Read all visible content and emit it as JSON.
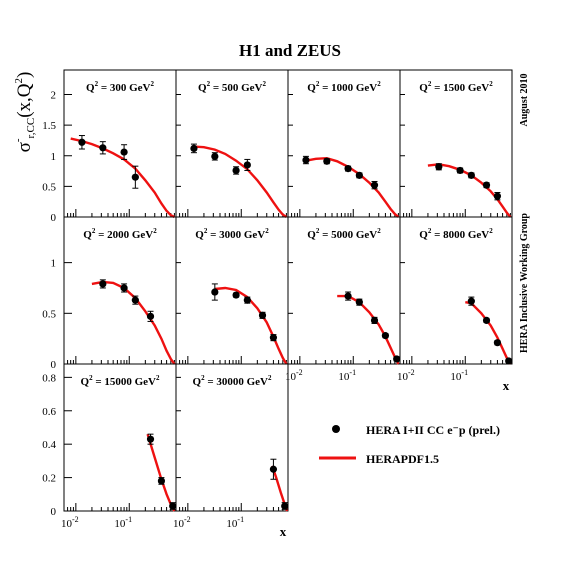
{
  "title": "H1 and ZEUS",
  "side_note_top": "August 2010",
  "side_note_bottom": "HERA Inclusive Working Group",
  "y_axis_label": "σ",
  "y_axis_label_sup": "-",
  "y_axis_label_sub": "r,CC",
  "y_axis_label_args": "(x,Q",
  "y_axis_label_args_sup": "2",
  "y_axis_label_close": ")",
  "x_axis_label": "x",
  "legend": {
    "data_label": "HERA I+II CC e⁻p (prel.)",
    "fit_label": "HERAPDF1.5"
  },
  "colors": {
    "data": "#000000",
    "fit": "#ee1111",
    "frame": "#000000"
  },
  "chart_data": {
    "type": "scatter",
    "x_scale": "log",
    "xlim": [
      0.006,
      0.75
    ],
    "x_ticks": [
      {
        "value": 0.01,
        "base": "10",
        "exp": "-2"
      },
      {
        "value": 0.1,
        "base": "10",
        "exp": "-1"
      }
    ],
    "row_ylims": [
      [
        0,
        2.4
      ],
      [
        0,
        1.45
      ],
      [
        0,
        0.88
      ]
    ],
    "row_yticks": [
      [
        {
          "value": 0,
          "label": "0"
        },
        {
          "value": 0.5,
          "label": "0.5"
        },
        {
          "value": 1,
          "label": "1"
        },
        {
          "value": 1.5,
          "label": "1.5"
        },
        {
          "value": 2,
          "label": "2"
        }
      ],
      [
        {
          "value": 0,
          "label": "0"
        },
        {
          "value": 0.5,
          "label": "0.5"
        },
        {
          "value": 1,
          "label": "1"
        }
      ],
      [
        {
          "value": 0,
          "label": "0"
        },
        {
          "value": 0.2,
          "label": "0.2"
        },
        {
          "value": 0.4,
          "label": "0.4"
        },
        {
          "value": 0.6,
          "label": "0.6"
        },
        {
          "value": 0.8,
          "label": "0.8"
        }
      ]
    ],
    "series": [
      {
        "name": "HERA I+II CC e⁻p (prel.)",
        "kind": "points"
      },
      {
        "name": "HERAPDF1.5",
        "kind": "curve"
      }
    ],
    "panels": [
      {
        "label": "Q",
        "label_sup": "2",
        "label_value": " = 300 GeV",
        "label_value_sup": "2",
        "points": [
          {
            "x": 0.013,
            "y": 1.22,
            "err": 0.11
          },
          {
            "x": 0.032,
            "y": 1.13,
            "err": 0.1
          },
          {
            "x": 0.08,
            "y": 1.06,
            "err": 0.12
          },
          {
            "x": 0.13,
            "y": 0.65,
            "err": 0.18
          }
        ],
        "curve": [
          [
            0.008,
            1.28
          ],
          [
            0.013,
            1.24
          ],
          [
            0.02,
            1.19
          ],
          [
            0.032,
            1.12
          ],
          [
            0.05,
            1.04
          ],
          [
            0.08,
            0.94
          ],
          [
            0.13,
            0.79
          ],
          [
            0.2,
            0.6
          ],
          [
            0.3,
            0.4
          ],
          [
            0.4,
            0.22
          ],
          [
            0.5,
            0.1
          ],
          [
            0.6,
            0.03
          ],
          [
            0.7,
            0.0
          ]
        ]
      },
      {
        "label": "Q",
        "label_sup": "2",
        "label_value": " = 500 GeV",
        "label_value_sup": "2",
        "points": [
          {
            "x": 0.013,
            "y": 1.12,
            "err": 0.07
          },
          {
            "x": 0.032,
            "y": 0.99,
            "err": 0.06
          },
          {
            "x": 0.08,
            "y": 0.76,
            "err": 0.06
          },
          {
            "x": 0.13,
            "y": 0.85,
            "err": 0.09
          }
        ],
        "curve": [
          [
            0.013,
            1.15
          ],
          [
            0.02,
            1.14
          ],
          [
            0.032,
            1.1
          ],
          [
            0.05,
            1.03
          ],
          [
            0.08,
            0.92
          ],
          [
            0.13,
            0.78
          ],
          [
            0.2,
            0.6
          ],
          [
            0.3,
            0.4
          ],
          [
            0.4,
            0.24
          ],
          [
            0.5,
            0.12
          ],
          [
            0.6,
            0.04
          ],
          [
            0.7,
            0.0
          ]
        ]
      },
      {
        "label": "Q",
        "label_sup": "2",
        "label_value": " = 1000 GeV",
        "label_value_sup": "2",
        "points": [
          {
            "x": 0.013,
            "y": 0.93,
            "err": 0.06
          },
          {
            "x": 0.032,
            "y": 0.91,
            "err": 0.04
          },
          {
            "x": 0.08,
            "y": 0.79,
            "err": 0.04
          },
          {
            "x": 0.13,
            "y": 0.68,
            "err": 0.04
          },
          {
            "x": 0.25,
            "y": 0.52,
            "err": 0.06
          }
        ],
        "curve": [
          [
            0.013,
            0.92
          ],
          [
            0.02,
            0.95
          ],
          [
            0.032,
            0.96
          ],
          [
            0.05,
            0.91
          ],
          [
            0.08,
            0.82
          ],
          [
            0.13,
            0.7
          ],
          [
            0.2,
            0.56
          ],
          [
            0.3,
            0.4
          ],
          [
            0.4,
            0.25
          ],
          [
            0.5,
            0.13
          ],
          [
            0.6,
            0.05
          ],
          [
            0.7,
            0.0
          ]
        ]
      },
      {
        "label": "Q",
        "label_sup": "2",
        "label_value": " = 1500 GeV",
        "label_value_sup": "2",
        "points": [
          {
            "x": 0.032,
            "y": 0.82,
            "err": 0.05
          },
          {
            "x": 0.08,
            "y": 0.76,
            "err": 0.04
          },
          {
            "x": 0.13,
            "y": 0.68,
            "err": 0.04
          },
          {
            "x": 0.25,
            "y": 0.52,
            "err": 0.04
          },
          {
            "x": 0.4,
            "y": 0.34,
            "err": 0.06
          }
        ],
        "curve": [
          [
            0.02,
            0.84
          ],
          [
            0.032,
            0.86
          ],
          [
            0.05,
            0.83
          ],
          [
            0.08,
            0.77
          ],
          [
            0.13,
            0.68
          ],
          [
            0.2,
            0.56
          ],
          [
            0.3,
            0.42
          ],
          [
            0.4,
            0.29
          ],
          [
            0.5,
            0.17
          ],
          [
            0.6,
            0.07
          ],
          [
            0.7,
            0.0
          ]
        ]
      },
      {
        "label": "Q",
        "label_sup": "2",
        "label_value": " = 2000 GeV",
        "label_value_sup": "2",
        "points": [
          {
            "x": 0.032,
            "y": 0.79,
            "err": 0.04
          },
          {
            "x": 0.08,
            "y": 0.75,
            "err": 0.04
          },
          {
            "x": 0.13,
            "y": 0.63,
            "err": 0.04
          },
          {
            "x": 0.25,
            "y": 0.47,
            "err": 0.05
          }
        ],
        "curve": [
          [
            0.02,
            0.79
          ],
          [
            0.032,
            0.81
          ],
          [
            0.05,
            0.8
          ],
          [
            0.08,
            0.75
          ],
          [
            0.13,
            0.65
          ],
          [
            0.2,
            0.52
          ],
          [
            0.3,
            0.38
          ],
          [
            0.4,
            0.25
          ],
          [
            0.5,
            0.13
          ],
          [
            0.6,
            0.05
          ],
          [
            0.7,
            0.0
          ]
        ]
      },
      {
        "label": "Q",
        "label_sup": "2",
        "label_value": " = 3000 GeV",
        "label_value_sup": "2",
        "points": [
          {
            "x": 0.032,
            "y": 0.71,
            "err": 0.08
          },
          {
            "x": 0.08,
            "y": 0.68,
            "err": 0.02
          },
          {
            "x": 0.13,
            "y": 0.63,
            "err": 0.03
          },
          {
            "x": 0.25,
            "y": 0.48,
            "err": 0.03
          },
          {
            "x": 0.4,
            "y": 0.26,
            "err": 0.03
          }
        ],
        "curve": [
          [
            0.032,
            0.74
          ],
          [
            0.05,
            0.75
          ],
          [
            0.08,
            0.73
          ],
          [
            0.13,
            0.66
          ],
          [
            0.2,
            0.55
          ],
          [
            0.3,
            0.41
          ],
          [
            0.4,
            0.27
          ],
          [
            0.5,
            0.15
          ],
          [
            0.6,
            0.06
          ],
          [
            0.7,
            0.0
          ]
        ]
      },
      {
        "label": "Q",
        "label_sup": "2",
        "label_value": " = 5000 GeV",
        "label_value_sup": "2",
        "points": [
          {
            "x": 0.08,
            "y": 0.67,
            "err": 0.04
          },
          {
            "x": 0.13,
            "y": 0.61,
            "err": 0.03
          },
          {
            "x": 0.25,
            "y": 0.43,
            "err": 0.03
          },
          {
            "x": 0.4,
            "y": 0.28,
            "err": 0.02
          },
          {
            "x": 0.65,
            "y": 0.05,
            "err": 0.02
          }
        ],
        "curve": [
          [
            0.05,
            0.67
          ],
          [
            0.08,
            0.67
          ],
          [
            0.13,
            0.61
          ],
          [
            0.2,
            0.51
          ],
          [
            0.3,
            0.39
          ],
          [
            0.4,
            0.27
          ],
          [
            0.5,
            0.16
          ],
          [
            0.6,
            0.07
          ],
          [
            0.7,
            0.0
          ]
        ]
      },
      {
        "label": "Q",
        "label_sup": "2",
        "label_value": " = 8000 GeV",
        "label_value_sup": "2",
        "points": [
          {
            "x": 0.13,
            "y": 0.62,
            "err": 0.04
          },
          {
            "x": 0.25,
            "y": 0.43,
            "err": 0.02
          },
          {
            "x": 0.4,
            "y": 0.21,
            "err": 0.02
          },
          {
            "x": 0.65,
            "y": 0.03,
            "err": 0.01
          }
        ],
        "curve": [
          [
            0.1,
            0.61
          ],
          [
            0.13,
            0.6
          ],
          [
            0.2,
            0.5
          ],
          [
            0.3,
            0.38
          ],
          [
            0.4,
            0.26
          ],
          [
            0.5,
            0.15
          ],
          [
            0.6,
            0.06
          ],
          [
            0.7,
            0.0
          ]
        ]
      },
      {
        "label": "Q",
        "label_sup": "2",
        "label_value": " = 15000 GeV",
        "label_value_sup": "2",
        "points": [
          {
            "x": 0.25,
            "y": 0.43,
            "err": 0.03
          },
          {
            "x": 0.4,
            "y": 0.18,
            "err": 0.02
          },
          {
            "x": 0.65,
            "y": 0.03,
            "err": 0.02
          }
        ],
        "curve": [
          [
            0.22,
            0.46
          ],
          [
            0.3,
            0.32
          ],
          [
            0.4,
            0.19
          ],
          [
            0.5,
            0.1
          ],
          [
            0.6,
            0.04
          ],
          [
            0.7,
            0.0
          ]
        ]
      },
      {
        "label": "Q",
        "label_sup": "2",
        "label_value": " = 30000 GeV",
        "label_value_sup": "2",
        "points": [
          {
            "x": 0.4,
            "y": 0.25,
            "err": 0.06
          },
          {
            "x": 0.65,
            "y": 0.03,
            "err": 0.02
          }
        ],
        "curve": [
          [
            0.38,
            0.27
          ],
          [
            0.45,
            0.2
          ],
          [
            0.55,
            0.11
          ],
          [
            0.65,
            0.04
          ],
          [
            0.72,
            0.0
          ]
        ]
      }
    ]
  }
}
